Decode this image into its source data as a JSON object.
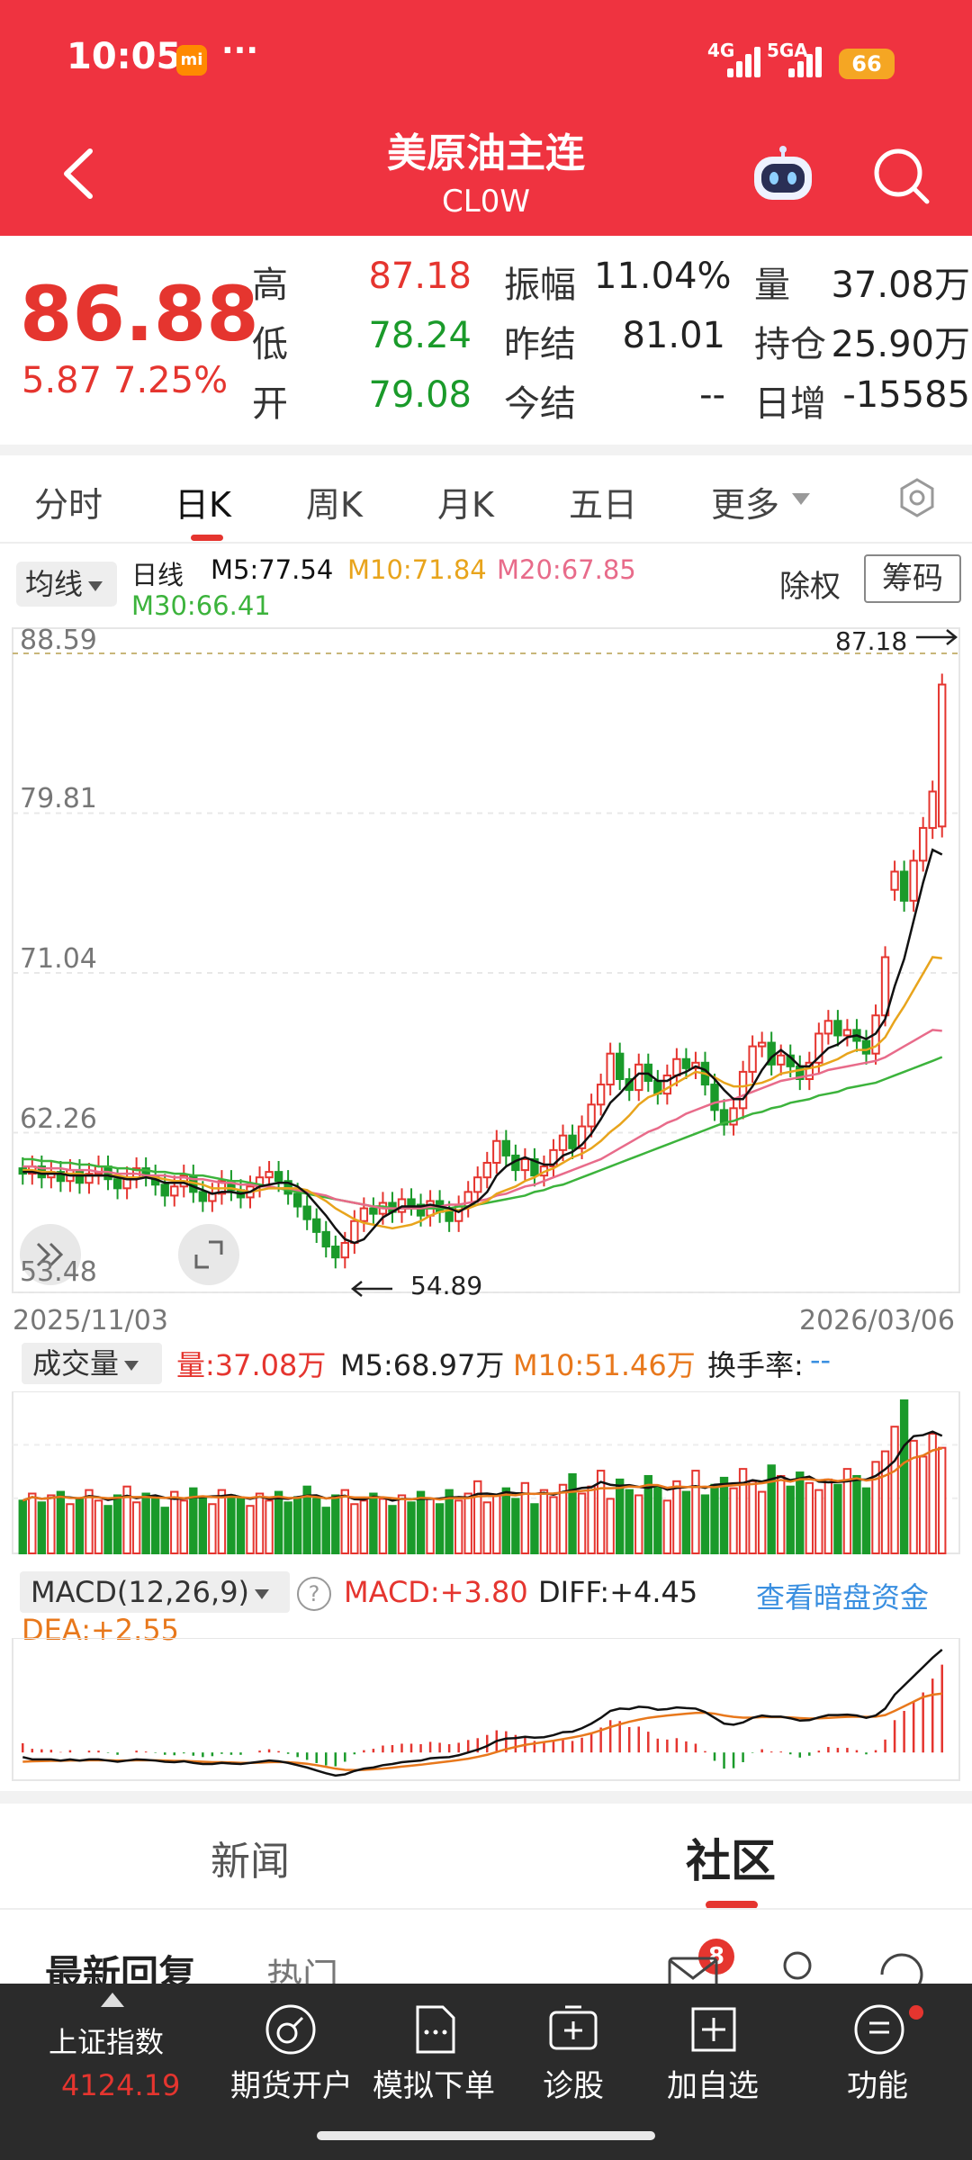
{
  "status": {
    "time": "10:05",
    "mi": "mi",
    "dots": "···",
    "net1": "4G",
    "net2": "5GA",
    "battery": "66"
  },
  "header": {
    "title": "美原油主连",
    "code": "CL0W"
  },
  "quote": {
    "price": "86.88",
    "change": "5.87",
    "change_pct": "7.25%",
    "rows": [
      {
        "l1": "高",
        "v1": "87.18",
        "l2": "振幅",
        "v2": "11.04%",
        "l3": "量",
        "v3": "37.08万"
      },
      {
        "l1": "低",
        "v1": "78.24",
        "l2": "昨结",
        "v2": "81.01",
        "l3": "持仓",
        "v3": "25.90万"
      },
      {
        "l1": "开",
        "v1": "79.08",
        "l2": "今结",
        "v2": "--",
        "l3": "日增",
        "v3": "-15585"
      }
    ]
  },
  "tabs": [
    "分时",
    "日K",
    "周K",
    "月K",
    "五日",
    "更多"
  ],
  "indicator": {
    "selector": "均线",
    "line_type": "日线",
    "m5": "M5:77.54",
    "m10": "M10:71.84",
    "m20": "M20:67.85",
    "m30": "M30:66.41",
    "chuquan": "除权",
    "chouma": "筹码"
  },
  "colors": {
    "red": "#e5352f",
    "green": "#1a9a2a",
    "m5": "#111111",
    "m10": "#e8a41c",
    "m20": "#e86b8a",
    "m30": "#3cb33c",
    "header": "#ef3340"
  },
  "chart_data": [
    {
      "type": "candlestick",
      "y_ticks": [
        "88.59",
        "79.81",
        "71.04",
        "62.26",
        "53.48"
      ],
      "ylim": [
        53.48,
        88.59
      ],
      "x_start": "2025/11/03",
      "x_end": "2026/03/06",
      "max_label": "87.18",
      "min_label": "54.89",
      "closes": [
        60.0,
        60.4,
        59.8,
        60.1,
        59.6,
        60.2,
        59.5,
        60.0,
        60.4,
        59.7,
        59.2,
        59.8,
        60.3,
        59.9,
        59.4,
        58.8,
        59.3,
        59.9,
        59.0,
        58.5,
        58.9,
        59.6,
        59.1,
        58.7,
        59.3,
        59.8,
        60.1,
        59.6,
        58.9,
        58.2,
        57.5,
        56.8,
        56.0,
        55.4,
        56.2,
        57.4,
        58.1,
        57.8,
        58.4,
        57.9,
        58.6,
        58.3,
        57.7,
        58.5,
        57.9,
        57.4,
        58.2,
        59.0,
        59.8,
        60.6,
        61.8,
        61.0,
        60.2,
        60.8,
        59.9,
        60.4,
        61.3,
        62.1,
        61.4,
        62.6,
        63.8,
        64.9,
        66.6,
        65.2,
        64.6,
        66.0,
        65.1,
        64.4,
        65.4,
        66.3,
        65.8,
        66.1,
        64.9,
        63.5,
        62.7,
        63.6,
        65.6,
        67.0,
        67.2,
        66.0,
        66.5,
        65.9,
        65.2,
        66.1,
        67.7,
        68.4,
        67.6,
        67.9,
        67.3,
        66.6,
        68.7,
        71.9,
        76.6,
        75.0,
        77.2,
        79.0,
        81.0,
        86.88
      ],
      "opens": [
        60.3,
        60.0,
        60.4,
        59.8,
        60.1,
        59.6,
        60.2,
        59.5,
        60.0,
        60.4,
        59.7,
        59.2,
        59.8,
        60.3,
        59.9,
        59.4,
        58.8,
        59.3,
        59.9,
        59.0,
        58.5,
        58.9,
        59.6,
        59.1,
        58.7,
        59.3,
        59.8,
        60.1,
        59.6,
        58.9,
        58.2,
        57.5,
        56.8,
        56.0,
        55.4,
        56.2,
        57.4,
        58.1,
        57.8,
        58.4,
        57.9,
        58.6,
        58.3,
        57.7,
        58.5,
        57.9,
        57.4,
        58.2,
        59.0,
        59.8,
        60.6,
        61.8,
        61.0,
        60.2,
        60.8,
        59.9,
        60.4,
        61.3,
        62.1,
        61.4,
        62.6,
        63.8,
        64.9,
        66.6,
        65.2,
        64.6,
        66.0,
        65.1,
        64.4,
        65.4,
        66.3,
        65.8,
        66.1,
        64.9,
        63.5,
        62.7,
        63.6,
        65.6,
        67.0,
        67.2,
        66.0,
        66.5,
        65.9,
        65.2,
        66.1,
        67.7,
        68.4,
        67.6,
        67.9,
        67.3,
        66.6,
        68.7,
        75.6,
        76.6,
        75.0,
        77.2,
        79.0,
        79.08
      ],
      "ma5": [
        60.1,
        60.1,
        60.0,
        60.0,
        60.0,
        59.9,
        59.9,
        59.9,
        59.9,
        59.9,
        59.8,
        59.7,
        59.7,
        59.8,
        59.7,
        59.5,
        59.5,
        59.5,
        59.3,
        59.1,
        58.9,
        59.0,
        59.0,
        58.9,
        59.0,
        59.3,
        59.4,
        59.5,
        59.5,
        59.3,
        58.9,
        58.3,
        57.7,
        57.0,
        56.4,
        56.2,
        56.4,
        57.0,
        57.6,
        57.9,
        58.2,
        58.2,
        58.2,
        58.3,
        58.2,
        58.1,
        57.9,
        58.2,
        58.5,
        59.0,
        59.9,
        60.4,
        60.7,
        60.9,
        60.7,
        60.5,
        60.5,
        61.0,
        61.2,
        61.6,
        62.2,
        63.0,
        63.9,
        64.4,
        65.0,
        65.5,
        65.5,
        65.1,
        65.1,
        65.4,
        65.6,
        65.9,
        65.7,
        65.2,
        64.6,
        64.1,
        64.1,
        64.8,
        65.7,
        66.4,
        66.8,
        66.4,
        65.9,
        65.9,
        66.4,
        66.9,
        67.1,
        67.5,
        67.6,
        67.4,
        67.7,
        68.5,
        70.3,
        71.8,
        73.9,
        76.0,
        77.8,
        77.54
      ],
      "ma10": [
        60.2,
        60.2,
        60.1,
        60.1,
        60.0,
        60.0,
        60.0,
        59.9,
        59.9,
        59.9,
        59.9,
        59.8,
        59.8,
        59.8,
        59.8,
        59.7,
        59.6,
        59.6,
        59.5,
        59.4,
        59.2,
        59.2,
        59.2,
        59.1,
        59.0,
        59.1,
        59.2,
        59.2,
        59.2,
        59.2,
        59.1,
        58.8,
        58.5,
        58.1,
        57.8,
        57.5,
        57.3,
        57.2,
        57.1,
        57.0,
        57.1,
        57.2,
        57.4,
        57.7,
        57.9,
        58.0,
        58.0,
        58.1,
        58.3,
        58.5,
        58.9,
        59.1,
        59.3,
        59.6,
        59.8,
        60.1,
        60.3,
        60.6,
        60.9,
        61.1,
        61.4,
        61.8,
        62.3,
        62.7,
        63.2,
        63.8,
        64.2,
        64.4,
        64.7,
        65.0,
        65.3,
        65.6,
        65.5,
        65.3,
        65.0,
        64.8,
        64.8,
        64.9,
        65.0,
        65.2,
        65.5,
        65.6,
        65.7,
        65.8,
        65.9,
        66.1,
        66.3,
        66.6,
        66.8,
        66.8,
        67.0,
        67.5,
        68.4,
        69.2,
        70.1,
        71.0,
        71.9,
        71.84
      ],
      "ma20": [
        60.4,
        60.4,
        60.3,
        60.3,
        60.3,
        60.2,
        60.2,
        60.2,
        60.1,
        60.1,
        60.0,
        60.0,
        60.0,
        59.9,
        59.9,
        59.9,
        59.8,
        59.8,
        59.7,
        59.7,
        59.6,
        59.5,
        59.5,
        59.4,
        59.4,
        59.3,
        59.3,
        59.2,
        59.2,
        59.1,
        59.0,
        58.9,
        58.8,
        58.6,
        58.5,
        58.4,
        58.3,
        58.2,
        58.1,
        58.1,
        58.1,
        58.1,
        58.1,
        58.2,
        58.2,
        58.3,
        58.3,
        58.4,
        58.5,
        58.6,
        58.8,
        58.9,
        59.1,
        59.3,
        59.4,
        59.6,
        59.8,
        60.0,
        60.2,
        60.4,
        60.6,
        60.8,
        61.1,
        61.4,
        61.7,
        62.0,
        62.3,
        62.5,
        62.8,
        63.0,
        63.3,
        63.5,
        63.7,
        63.9,
        64.0,
        64.1,
        64.3,
        64.5,
        64.7,
        64.9,
        65.1,
        65.2,
        65.3,
        65.4,
        65.5,
        65.7,
        65.8,
        65.9,
        66.0,
        66.1,
        66.2,
        66.4,
        66.7,
        67.0,
        67.3,
        67.6,
        67.9,
        67.85
      ],
      "ma30": [
        60.8,
        60.8,
        60.7,
        60.7,
        60.6,
        60.6,
        60.5,
        60.5,
        60.4,
        60.4,
        60.3,
        60.3,
        60.2,
        60.2,
        60.1,
        60.1,
        60.0,
        60.0,
        59.9,
        59.9,
        59.8,
        59.7,
        59.6,
        59.6,
        59.5,
        59.4,
        59.3,
        59.2,
        59.1,
        59.0,
        58.9,
        58.8,
        58.7,
        58.6,
        58.5,
        58.4,
        58.3,
        58.2,
        58.2,
        58.1,
        58.1,
        58.1,
        58.1,
        58.1,
        58.1,
        58.1,
        58.2,
        58.2,
        58.3,
        58.4,
        58.5,
        58.6,
        58.7,
        58.8,
        59.0,
        59.1,
        59.3,
        59.4,
        59.6,
        59.8,
        60.0,
        60.2,
        60.4,
        60.6,
        60.8,
        61.0,
        61.2,
        61.4,
        61.6,
        61.8,
        62.0,
        62.2,
        62.4,
        62.6,
        62.8,
        62.9,
        63.1,
        63.3,
        63.4,
        63.6,
        63.7,
        63.9,
        64.0,
        64.1,
        64.3,
        64.4,
        64.5,
        64.7,
        64.8,
        64.9,
        65.0,
        65.2,
        65.4,
        65.6,
        65.8,
        66.0,
        66.2,
        66.41
      ]
    },
    {
      "type": "bar",
      "title": "成交量",
      "labels": {
        "vol": "量:37.08万",
        "m5": "M5:68.97万",
        "m10": "M10:51.46万",
        "turnover": "换手率:",
        "turnover_val": "--"
      },
      "values": [
        30,
        34,
        29,
        33,
        35,
        28,
        31,
        36,
        30,
        27,
        33,
        38,
        29,
        34,
        31,
        26,
        35,
        30,
        37,
        32,
        28,
        36,
        33,
        31,
        27,
        34,
        30,
        35,
        29,
        32,
        38,
        31,
        26,
        33,
        36,
        28,
        30,
        34,
        31,
        27,
        33,
        29,
        35,
        31,
        28,
        36,
        30,
        34,
        41,
        29,
        33,
        37,
        31,
        40,
        28,
        36,
        32,
        39,
        45,
        34,
        38,
        47,
        31,
        42,
        36,
        33,
        44,
        38,
        30,
        41,
        35,
        47,
        33,
        39,
        43,
        37,
        48,
        41,
        35,
        50,
        44,
        38,
        46,
        40,
        36,
        42,
        39,
        48,
        44,
        37,
        52,
        58,
        72,
        87,
        64,
        55,
        68,
        60
      ],
      "ylim": [
        0,
        90
      ]
    },
    {
      "type": "line",
      "title": "MACD(12,26,9)",
      "labels": {
        "macd": "MACD:+3.80",
        "diff": "DIFF:+4.45",
        "dea": "DEA:+2.55",
        "link": "查看暗盘资金"
      },
      "diff": [
        -0.2,
        -0.3,
        -0.3,
        -0.3,
        -0.35,
        -0.3,
        -0.35,
        -0.3,
        -0.3,
        -0.35,
        -0.4,
        -0.35,
        -0.3,
        -0.32,
        -0.35,
        -0.4,
        -0.42,
        -0.38,
        -0.45,
        -0.5,
        -0.5,
        -0.45,
        -0.48,
        -0.5,
        -0.45,
        -0.4,
        -0.35,
        -0.38,
        -0.45,
        -0.55,
        -0.65,
        -0.78,
        -0.9,
        -1.0,
        -0.95,
        -0.8,
        -0.7,
        -0.65,
        -0.55,
        -0.5,
        -0.42,
        -0.38,
        -0.35,
        -0.25,
        -0.22,
        -0.2,
        -0.12,
        -0.0,
        0.12,
        0.28,
        0.5,
        0.6,
        0.62,
        0.68,
        0.64,
        0.66,
        0.75,
        0.88,
        0.9,
        1.05,
        1.25,
        1.5,
        1.8,
        1.9,
        1.88,
        1.98,
        1.95,
        1.85,
        1.88,
        1.95,
        1.92,
        1.9,
        1.75,
        1.5,
        1.25,
        1.2,
        1.3,
        1.5,
        1.6,
        1.55,
        1.55,
        1.48,
        1.38,
        1.4,
        1.52,
        1.62,
        1.62,
        1.64,
        1.6,
        1.5,
        1.6,
        1.9,
        2.5,
        2.9,
        3.3,
        3.7,
        4.1,
        4.45
      ],
      "dea": [
        -0.4,
        -0.38,
        -0.37,
        -0.36,
        -0.36,
        -0.35,
        -0.35,
        -0.34,
        -0.34,
        -0.34,
        -0.35,
        -0.35,
        -0.34,
        -0.34,
        -0.34,
        -0.35,
        -0.36,
        -0.36,
        -0.38,
        -0.4,
        -0.42,
        -0.42,
        -0.43,
        -0.45,
        -0.45,
        -0.44,
        -0.42,
        -0.41,
        -0.42,
        -0.45,
        -0.49,
        -0.55,
        -0.62,
        -0.7,
        -0.75,
        -0.76,
        -0.75,
        -0.73,
        -0.7,
        -0.66,
        -0.61,
        -0.57,
        -0.53,
        -0.48,
        -0.43,
        -0.38,
        -0.33,
        -0.27,
        -0.19,
        -0.1,
        0.02,
        0.14,
        0.24,
        0.33,
        0.39,
        0.45,
        0.51,
        0.58,
        0.65,
        0.73,
        0.83,
        0.96,
        1.1,
        1.22,
        1.33,
        1.42,
        1.5,
        1.55,
        1.6,
        1.64,
        1.68,
        1.71,
        1.72,
        1.68,
        1.6,
        1.54,
        1.51,
        1.51,
        1.53,
        1.53,
        1.53,
        1.52,
        1.49,
        1.47,
        1.48,
        1.5,
        1.52,
        1.54,
        1.55,
        1.54,
        1.55,
        1.62,
        1.8,
        2.0,
        2.2,
        2.4,
        2.5,
        2.55
      ],
      "ylim": [
        -1.2,
        4.8
      ]
    }
  ],
  "news_tabs": {
    "news": "新闻",
    "community": "社区"
  },
  "feed": {
    "latest": "最新回复",
    "hot": "热门",
    "badge": "8"
  },
  "bottom_nav": {
    "index_name": "上证指数",
    "index_value": "4124.19",
    "items": [
      "期货开户",
      "模拟下单",
      "诊股",
      "加自选",
      "功能"
    ]
  }
}
